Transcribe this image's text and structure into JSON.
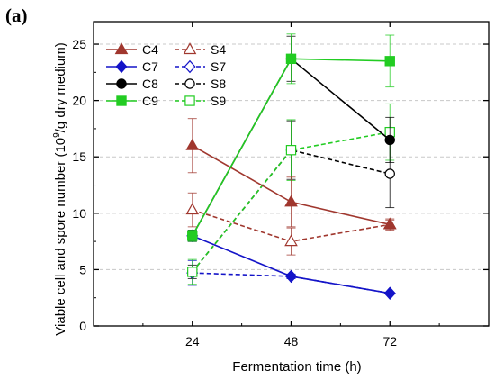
{
  "panel_label": "(a)",
  "chart_data": {
    "type": "line",
    "xlabel": "Fermentation time (h)",
    "ylabel": {
      "pre": "Viable cell and spore number (10",
      "sup": "9",
      "post": "/g dry medium)"
    },
    "x": [
      24,
      48,
      72
    ],
    "xlim": [
      0,
      96
    ],
    "ylim": [
      0,
      27
    ],
    "xticks": [
      24,
      48,
      72
    ],
    "yticks": [
      0,
      5,
      10,
      15,
      20,
      25
    ],
    "grid": "horizontal dotted",
    "legend_position": "top-left",
    "series": [
      {
        "name": "C4",
        "color": "#a0372e",
        "marker": "triangle",
        "fill": "filled",
        "dash": "solid",
        "values": [
          16.0,
          11.0,
          9.0
        ],
        "errors": [
          2.4,
          2.2,
          0.5
        ]
      },
      {
        "name": "S4",
        "color": "#a0372e",
        "marker": "triangle",
        "fill": "open",
        "dash": "dashed",
        "values": [
          10.3,
          7.5,
          9.0
        ],
        "errors": [
          1.5,
          1.2,
          0.4
        ]
      },
      {
        "name": "C7",
        "color": "#1414c8",
        "marker": "diamond",
        "fill": "filled",
        "dash": "solid",
        "values": [
          8.0,
          4.4,
          2.9
        ],
        "errors": [
          0.5,
          0.2,
          0.1
        ]
      },
      {
        "name": "S7",
        "color": "#1414c8",
        "marker": "diamond",
        "fill": "open",
        "dash": "dashed",
        "values": [
          4.7,
          4.4,
          2.9
        ],
        "errors": [
          1.1,
          0.2,
          0.1
        ]
      },
      {
        "name": "C8",
        "color": "#000000",
        "marker": "circle",
        "fill": "filled",
        "dash": "solid",
        "values": [
          8.0,
          23.7,
          16.5
        ],
        "errors": [
          0.5,
          2.0,
          2.0
        ]
      },
      {
        "name": "S8",
        "color": "#000000",
        "marker": "circle",
        "fill": "open",
        "dash": "dashed",
        "values": [
          4.8,
          15.6,
          13.5
        ],
        "errors": [
          0.6,
          2.6,
          3.0
        ]
      },
      {
        "name": "C9",
        "color": "#22cc22",
        "marker": "square",
        "fill": "filled",
        "dash": "solid",
        "values": [
          8.0,
          23.7,
          23.5
        ],
        "errors": [
          0.5,
          2.2,
          2.3
        ]
      },
      {
        "name": "S9",
        "color": "#22cc22",
        "marker": "square",
        "fill": "open",
        "dash": "dashed",
        "values": [
          4.8,
          15.6,
          17.2
        ],
        "errors": [
          1.1,
          2.7,
          2.5
        ]
      }
    ]
  }
}
